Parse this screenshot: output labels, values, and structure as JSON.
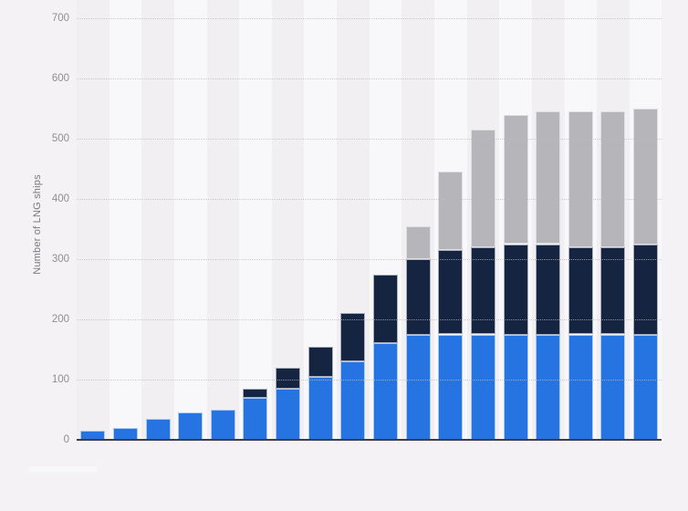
{
  "y_axis": {
    "label": "Number of LNG ships",
    "tick_labels": [
      "0",
      "100",
      "200",
      "300",
      "400",
      "500",
      "600",
      "700"
    ]
  },
  "x_axis": {
    "tick_labels_visible": false
  },
  "colors": {
    "page_background": "#f4f2f4",
    "stripe_dark": "#f1eff2",
    "stripe_light": "#f8f7f9",
    "gridline": "#bcbbc1",
    "axis_line": "#3d3d4a",
    "tick_text": "#8f8e94"
  },
  "chart_data": {
    "type": "bar",
    "stacked": true,
    "title": "",
    "xlabel": "",
    "ylabel": "Number of LNG ships",
    "ylim": [
      0,
      700
    ],
    "ytick_step": 100,
    "grid": "horizontal-dotted",
    "legend": "none",
    "bar_count": 18,
    "categories": [
      "",
      "",
      "",
      "",
      "",
      "",
      "",
      "",
      "",
      "",
      "",
      "",
      "",
      "",
      "",
      "",
      "",
      ""
    ],
    "series": [
      {
        "name": "blue",
        "color": "#2674e2",
        "values": [
          15,
          20,
          35,
          45,
          50,
          70,
          85,
          105,
          130,
          160,
          175,
          175,
          175,
          175,
          175,
          175,
          175,
          175
        ]
      },
      {
        "name": "dark-navy",
        "color": "#152440",
        "values": [
          0,
          0,
          0,
          0,
          0,
          15,
          35,
          50,
          80,
          115,
          125,
          140,
          145,
          150,
          150,
          145,
          145,
          150
        ]
      },
      {
        "name": "gray",
        "color": "#b6b5b9",
        "values": [
          0,
          0,
          0,
          0,
          0,
          0,
          0,
          0,
          0,
          0,
          55,
          130,
          195,
          215,
          220,
          225,
          225,
          225
        ]
      }
    ],
    "stack_totals": [
      15,
      20,
      35,
      45,
      50,
      85,
      120,
      155,
      210,
      275,
      355,
      445,
      515,
      540,
      545,
      545,
      545,
      550
    ]
  }
}
